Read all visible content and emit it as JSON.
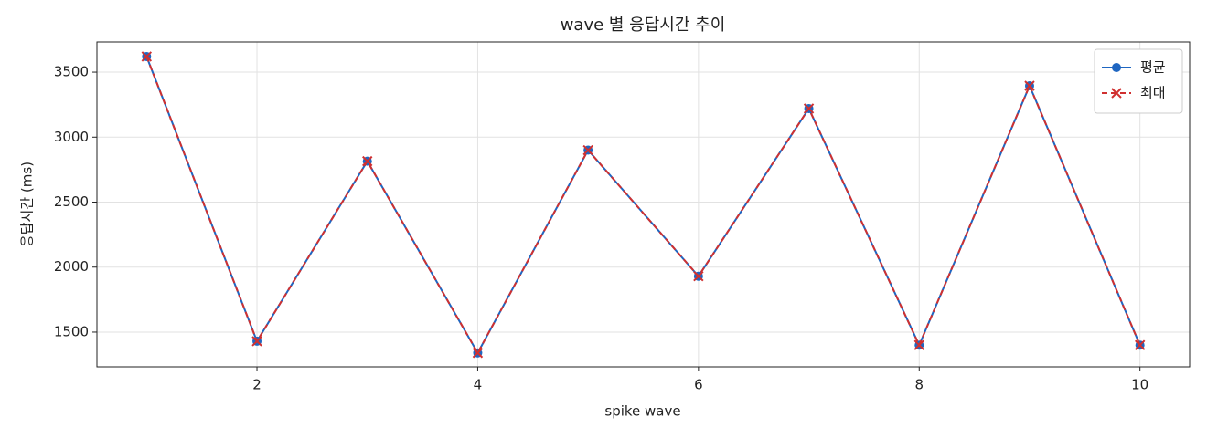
{
  "chart_data": {
    "type": "line",
    "title": "wave 별 응답시간 추이",
    "x_label": "spike wave",
    "y_label": "응답시간 (ms)",
    "x": [
      1,
      2,
      3,
      4,
      5,
      6,
      7,
      8,
      9,
      10
    ],
    "series": [
      {
        "name": "평균",
        "color": "#1f66c1",
        "marker": "circle",
        "dash": false,
        "values": [
          3620,
          1430,
          2815,
          1340,
          2900,
          1930,
          3220,
          1400,
          3395,
          1400
        ]
      },
      {
        "name": "최대",
        "color": "#d03030",
        "marker": "x",
        "dash": true,
        "values": [
          3620,
          1430,
          2815,
          1340,
          2900,
          1930,
          3220,
          1400,
          3395,
          1400
        ]
      }
    ],
    "xlim": [
      0.55,
      10.45
    ],
    "xticks": [
      2,
      4,
      6,
      8,
      10
    ],
    "ylim": [
      1233,
      3732
    ],
    "yticks": [
      1500,
      2000,
      2500,
      3000,
      3500
    ],
    "grid": true,
    "legend": "upper right"
  }
}
